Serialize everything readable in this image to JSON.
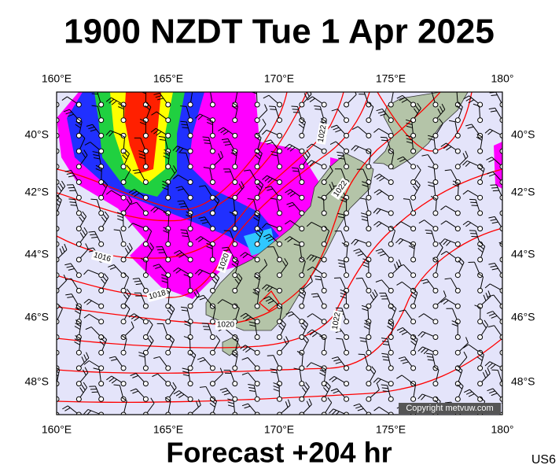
{
  "title": "1900 NZDT Tue 1 Apr 2025",
  "map": {
    "lon_labels": [
      "160°E",
      "165°E",
      "170°E",
      "175°E",
      "180°"
    ],
    "lat_labels": [
      "40°S",
      "42°S",
      "44°S",
      "46°S",
      "48°S"
    ],
    "isobar_labels": [
      "1016",
      "1018",
      "1020",
      "1020",
      "1022",
      "1022",
      "1022"
    ],
    "copyright": "Copyright metvuw.com"
  },
  "footer": {
    "forecast": "Forecast +204 hr",
    "code": "US6"
  }
}
